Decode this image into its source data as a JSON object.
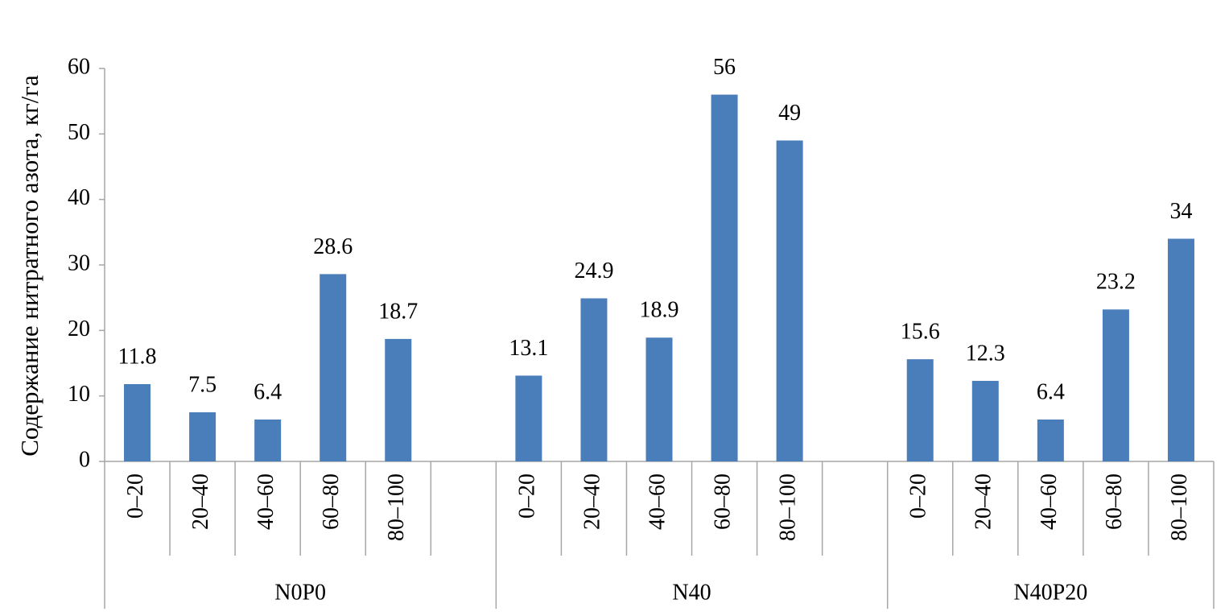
{
  "chart_data": {
    "type": "bar",
    "y_label": "Содержание нитратного азота, кг/га",
    "color": "#4a7ebb",
    "groups": [
      {
        "name": "N0P0",
        "categories": [
          "0–20",
          "20–40",
          "40–60",
          "60–80",
          "80–100",
          null
        ],
        "values": [
          11.8,
          7.5,
          6.4,
          28.6,
          18.7,
          null
        ]
      },
      {
        "name": "N40",
        "categories": [
          "0–20",
          "20–40",
          "40–60",
          "60–80",
          "80–100",
          null
        ],
        "values": [
          13.1,
          24.9,
          18.9,
          56,
          49,
          null
        ]
      },
      {
        "name": "N40P20",
        "categories": [
          "0–20",
          "20–40",
          "40–60",
          "60–80",
          "80–100"
        ],
        "values": [
          15.6,
          12.3,
          6.4,
          23.2,
          34
        ]
      }
    ],
    "ylim": [
      0,
      60
    ],
    "yticks": [
      0,
      10,
      20,
      30,
      40,
      50,
      60
    ]
  }
}
